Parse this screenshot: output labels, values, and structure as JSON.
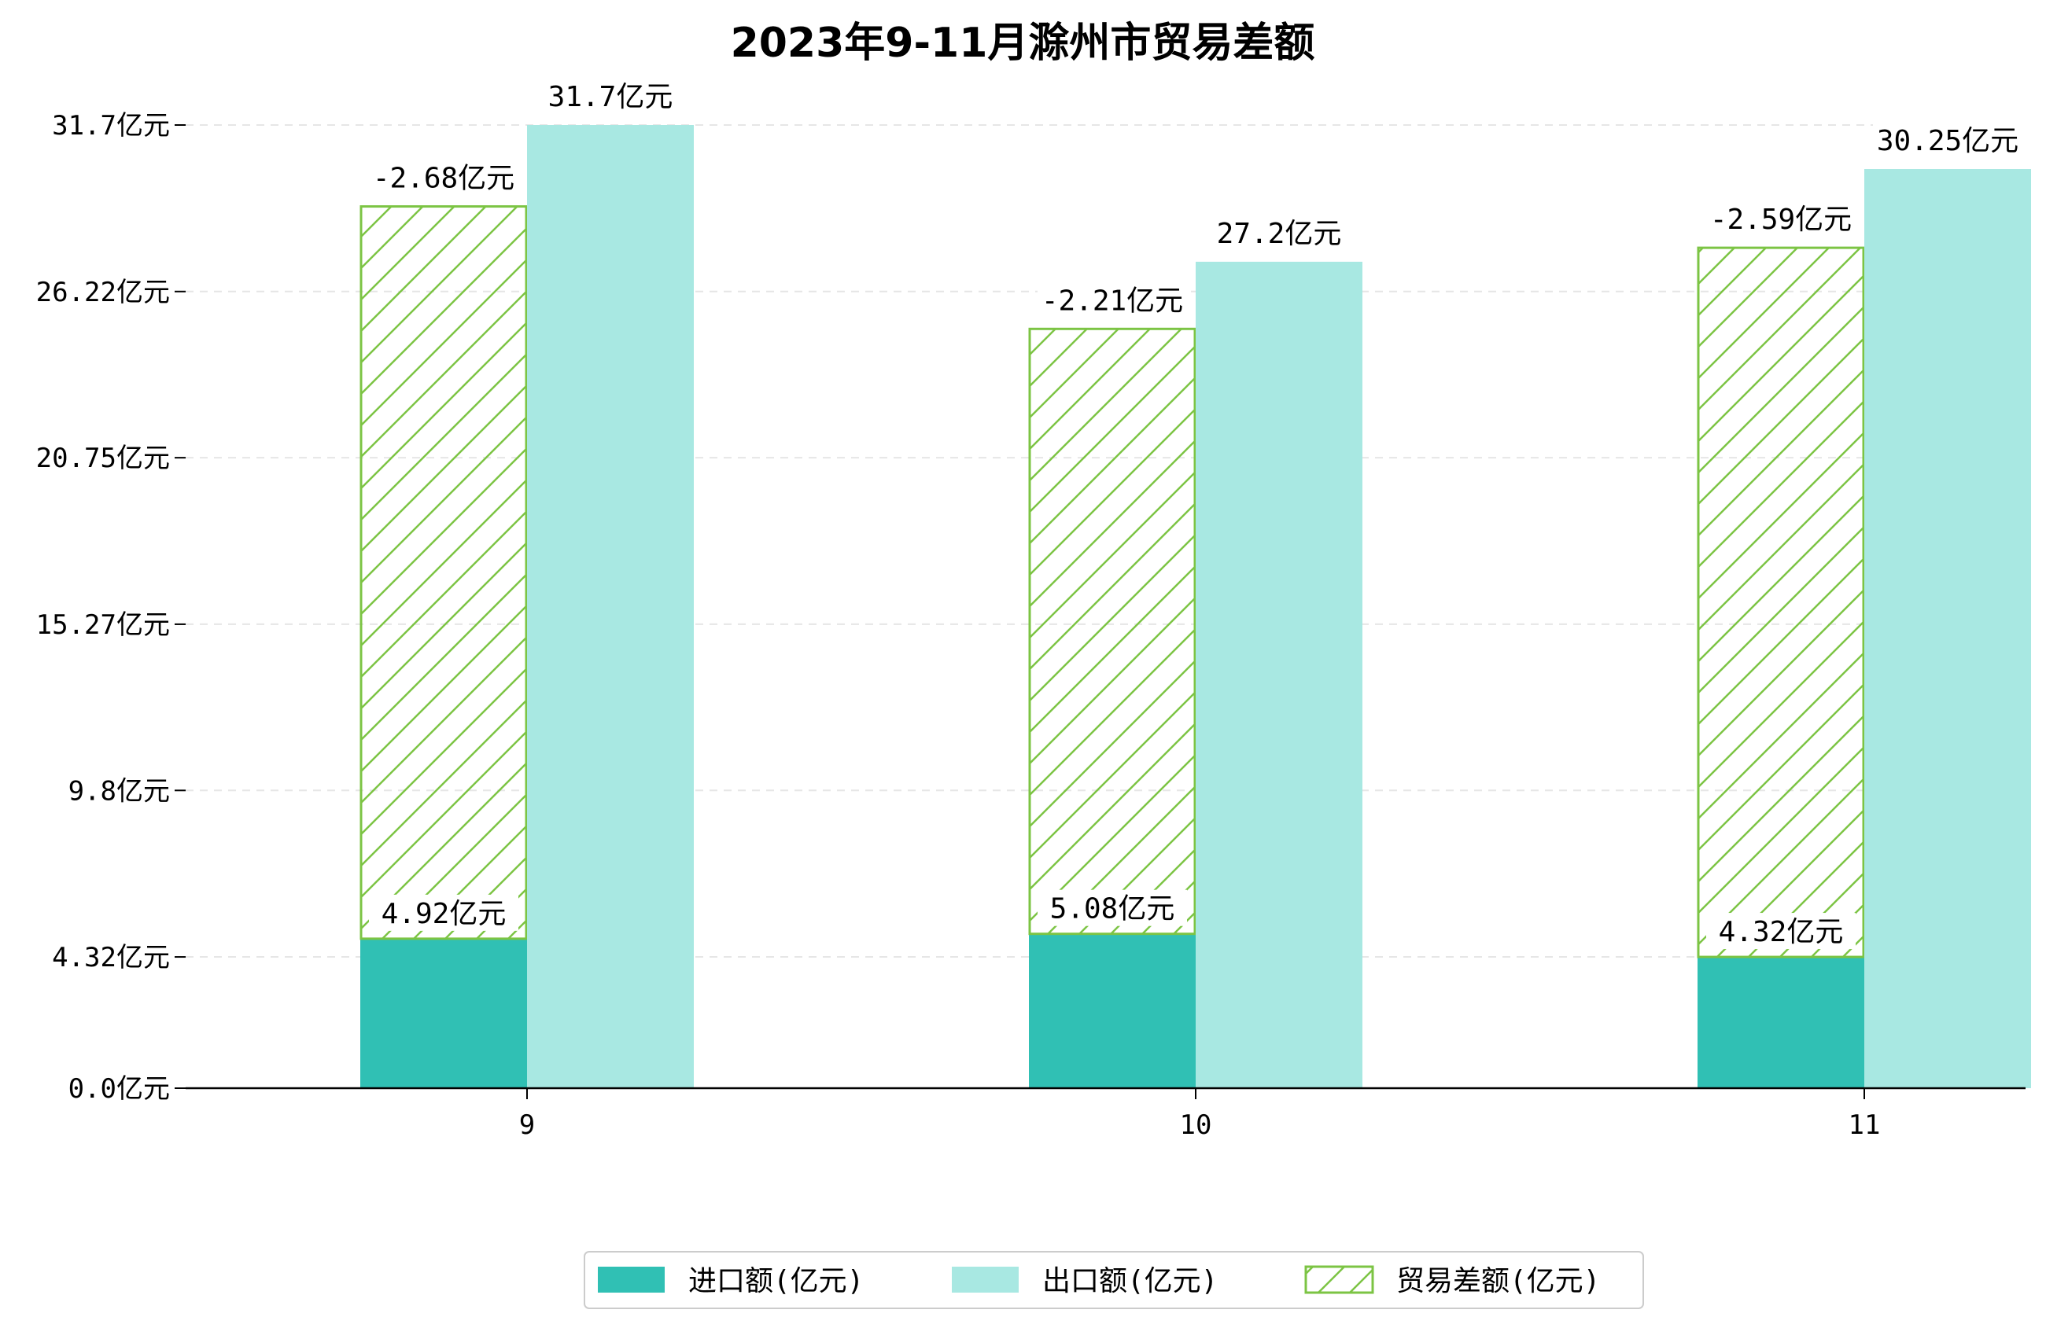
{
  "chart_data": {
    "type": "bar",
    "title": "2023年9-11月滁州市贸易差额",
    "categories": [
      "9",
      "10",
      "11"
    ],
    "y_ticks": [
      "0.0亿元",
      "4.32亿元",
      "9.8亿元",
      "15.27亿元",
      "20.75亿元",
      "26.22亿元",
      "31.7亿元"
    ],
    "y_tick_values": [
      0.0,
      4.32,
      9.8,
      15.27,
      20.75,
      26.22,
      31.7
    ],
    "ylim": [
      0,
      31.7
    ],
    "grid": "horizontal dashed",
    "legend_position": "bottom",
    "series": [
      {
        "name": "进口额(亿元)",
        "values": [
          4.92,
          5.08,
          4.32
        ],
        "labels": [
          "4.92亿元",
          "5.08亿元",
          "4.32亿元"
        ],
        "color": "#30c0b4",
        "style": "solid"
      },
      {
        "name": "出口额(亿元)",
        "values": [
          31.7,
          27.2,
          30.25
        ],
        "labels": [
          "31.7亿元",
          "27.2亿元",
          "30.25亿元"
        ],
        "color": "#a8e8e2",
        "style": "solid"
      },
      {
        "name": "贸易差额(亿元)",
        "values": [
          -2.68,
          -2.21,
          -2.59
        ],
        "labels": [
          "-2.68亿元",
          "-2.21亿元",
          "-2.59亿元"
        ],
        "color": "#7cc444",
        "style": "hatched"
      }
    ]
  }
}
